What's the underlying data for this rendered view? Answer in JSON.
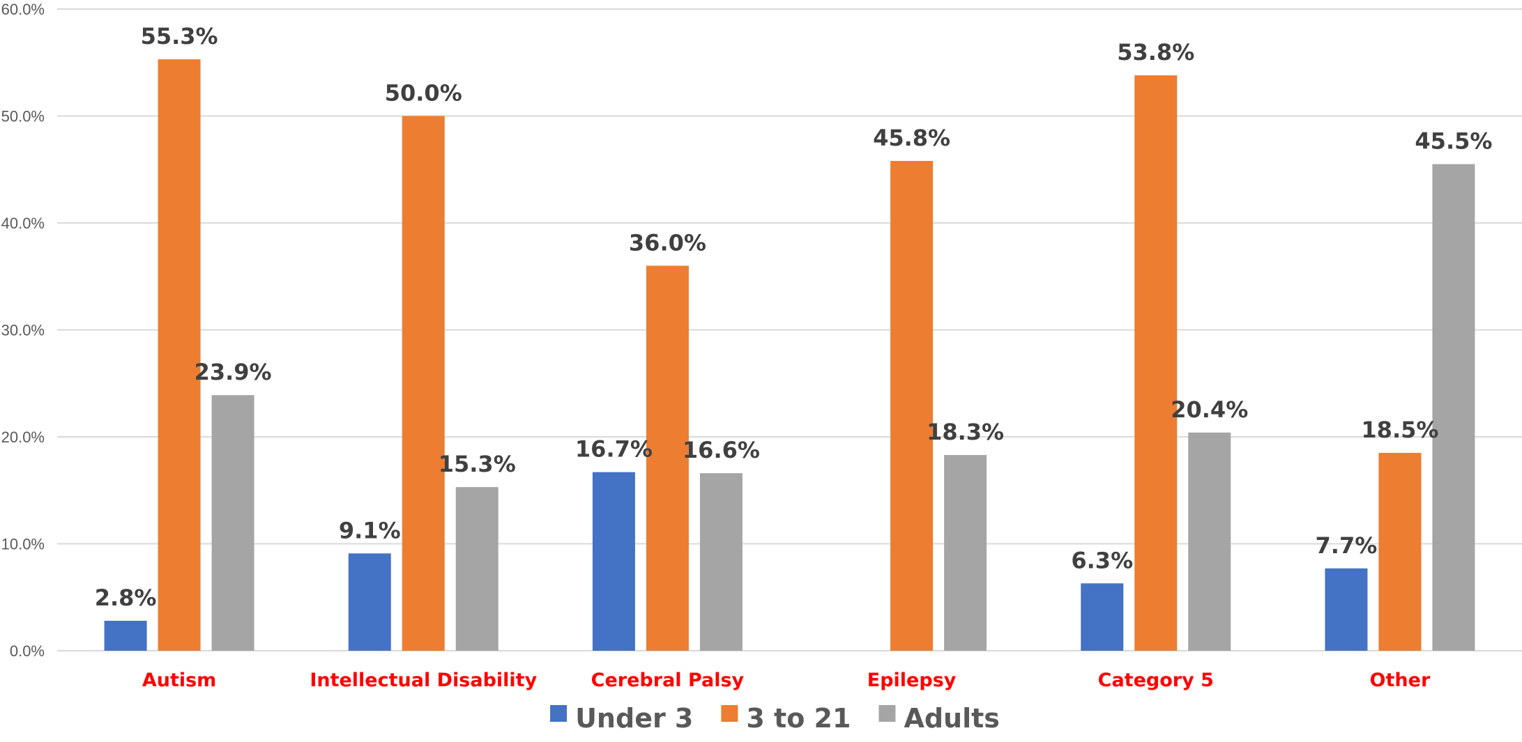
{
  "chart_data": {
    "type": "bar",
    "categories": [
      "Autism",
      "Intellectual Disability",
      "Cerebral Palsy",
      "Epilepsy",
      "Category 5",
      "Other"
    ],
    "series": [
      {
        "name": "Under 3",
        "values": [
          2.8,
          9.1,
          16.7,
          null,
          6.3,
          7.7
        ],
        "labels": [
          "2.8%",
          "9.1%",
          "16.7%",
          "",
          "6.3%",
          "7.7%"
        ],
        "color": "#4472c4"
      },
      {
        "name": "3 to 21",
        "values": [
          55.3,
          50.0,
          36.0,
          45.8,
          53.8,
          18.5
        ],
        "labels": [
          "55.3%",
          "50.0%",
          "36.0%",
          "45.8%",
          "53.8%",
          "18.5%"
        ],
        "color": "#ed7d31"
      },
      {
        "name": "Adults",
        "values": [
          23.9,
          15.3,
          16.6,
          18.3,
          20.4,
          45.5
        ],
        "labels": [
          "23.9%",
          "15.3%",
          "16.6%",
          "18.3%",
          "20.4%",
          "45.5%"
        ],
        "color": "#a5a5a5"
      }
    ],
    "y_ticks": [
      0,
      10,
      20,
      30,
      40,
      50,
      60
    ],
    "y_tick_labels": [
      "0.0%",
      "10.0%",
      "20.0%",
      "30.0%",
      "40.0%",
      "50.0%",
      "60.0%"
    ],
    "ylim": [
      0,
      60
    ],
    "title": "",
    "xlabel": "",
    "ylabel": "",
    "grid": true,
    "legend_position": "bottom",
    "category_label_color": "#ff0000",
    "gridline_color": "#d9d9d9"
  }
}
